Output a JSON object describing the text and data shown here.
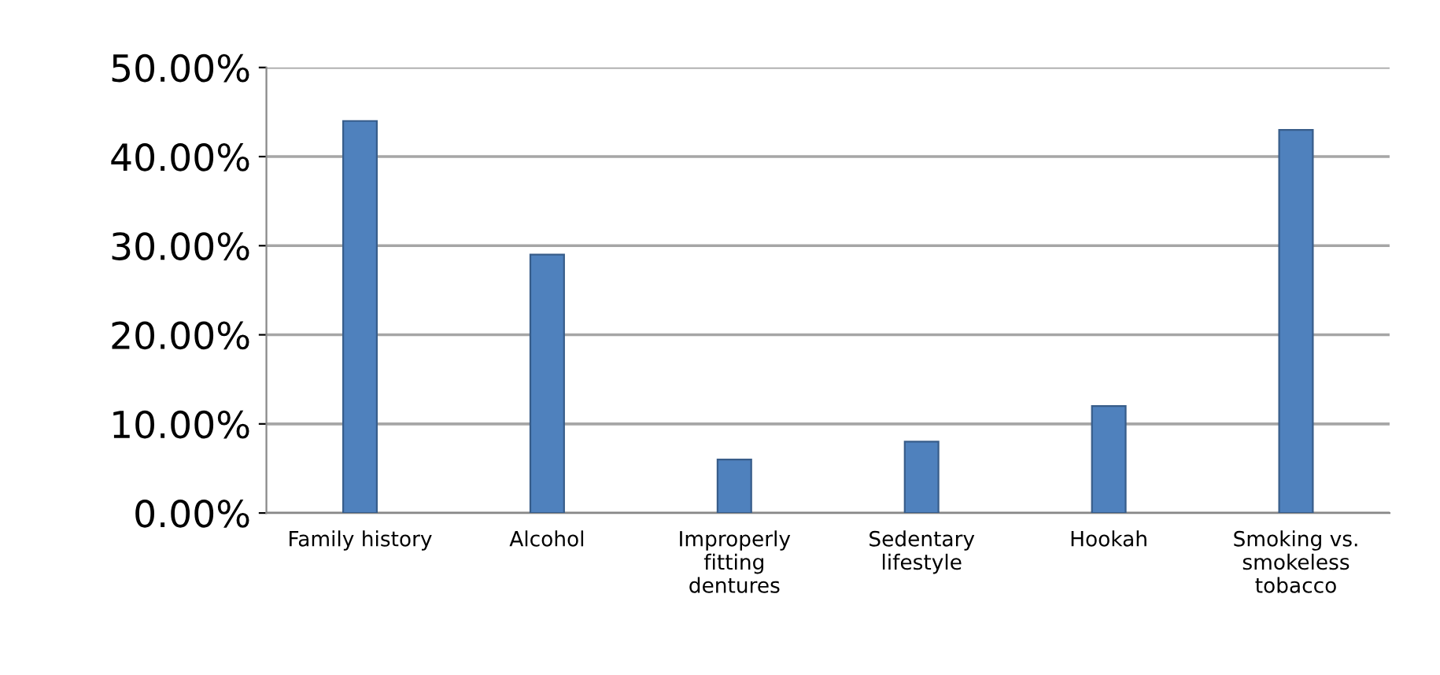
{
  "chart_data": {
    "type": "bar",
    "categories": [
      "Family history",
      "Alcohol",
      "Improperly\nfitting\ndentures",
      "Sedentary\nlifestyle",
      "Hookah",
      "Smoking vs.\nsmokeless\ntobacco"
    ],
    "values": [
      44,
      29,
      6,
      8,
      12,
      43
    ],
    "color": "#4f81bd",
    "ylim": [
      0,
      50
    ],
    "yticks": [
      {
        "value": 0,
        "label": "0.00%"
      },
      {
        "value": 10,
        "label": "10.00%"
      },
      {
        "value": 20,
        "label": "20.00%"
      },
      {
        "value": 30,
        "label": "30.00%"
      },
      {
        "value": 40,
        "label": "40.00%"
      },
      {
        "value": 50,
        "label": "50.00%"
      }
    ],
    "grid": "y"
  }
}
